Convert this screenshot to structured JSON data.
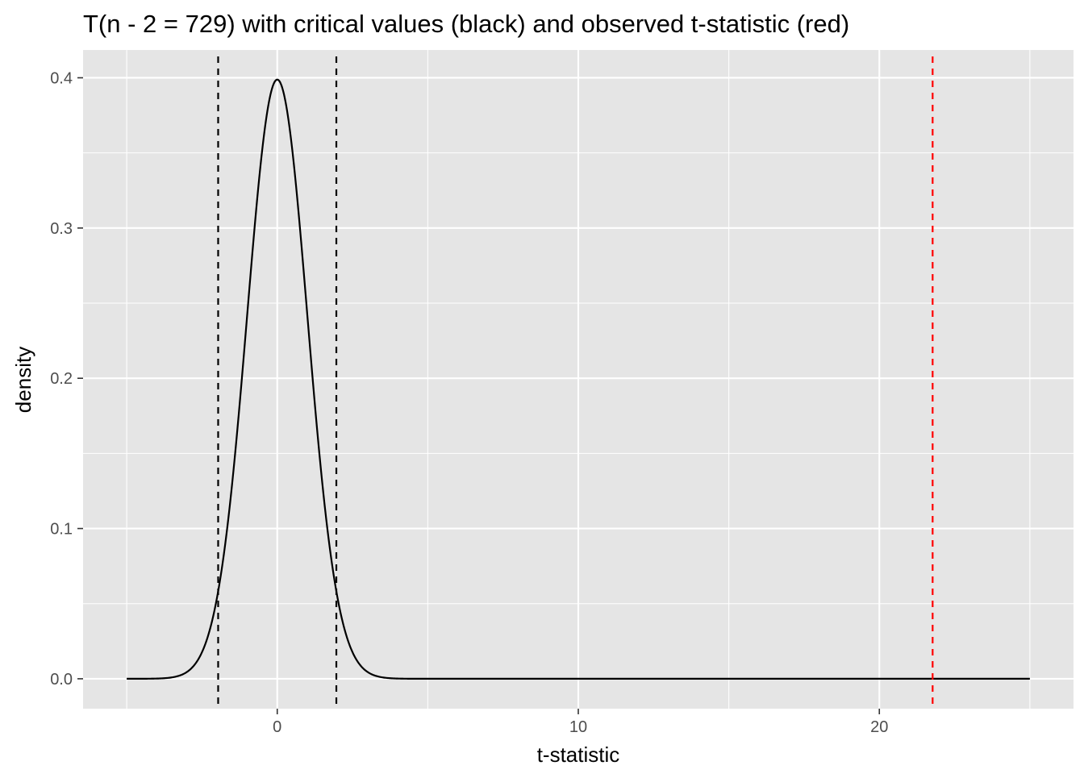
{
  "chart_data": {
    "type": "line",
    "title": "T(n - 2 = 729) with critical values (black) and observed t-statistic (red)",
    "xlabel": "t-statistic",
    "ylabel": "density",
    "df": 729,
    "xlim": [
      -6.45,
      26.45
    ],
    "ylim": [
      -0.0199,
      0.4185
    ],
    "x_ticks": [
      0,
      10,
      20
    ],
    "x_minor_ticks": [
      -5,
      5,
      15,
      25
    ],
    "y_ticks": [
      0.0,
      0.1,
      0.2,
      0.3,
      0.4
    ],
    "y_tick_labels": [
      "0.0",
      "0.1",
      "0.2",
      "0.3",
      "0.4"
    ],
    "y_minor_ticks": [
      0.05,
      0.15,
      0.25,
      0.35
    ],
    "grid": true,
    "series": [
      {
        "x": [
          -5,
          -4.5,
          -4,
          -3.5,
          -3,
          -2.5,
          -2,
          -1.5,
          -1,
          -0.5,
          0,
          0.5,
          1,
          1.5,
          2,
          2.5,
          3,
          3.5,
          4,
          4.5,
          5,
          10,
          15,
          20,
          25
        ],
        "y": [
          0.0,
          0.0,
          0.0001,
          0.0009,
          0.0045,
          0.0176,
          0.0541,
          0.1296,
          0.2419,
          0.3519,
          0.3988,
          0.3519,
          0.2419,
          0.1296,
          0.0541,
          0.0176,
          0.0045,
          0.0009,
          0.0001,
          0.0,
          0.0,
          0.0,
          0.0,
          0.0,
          0.0
        ],
        "color": "#000000",
        "x_range": [
          -5,
          25
        ]
      }
    ],
    "vlines": [
      {
        "x": -1.963,
        "color": "#000000",
        "linetype": "dashed"
      },
      {
        "x": 1.963,
        "color": "#000000",
        "linetype": "dashed"
      },
      {
        "x": 21.77,
        "color": "#ff0000",
        "linetype": "dashed"
      }
    ],
    "colors": {
      "panel_background": "#e5e5e5",
      "grid": "#ffffff",
      "critical": "#000000",
      "observed": "#ff0000"
    }
  }
}
